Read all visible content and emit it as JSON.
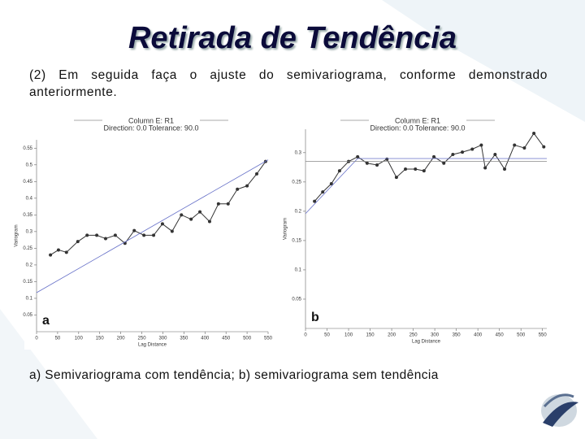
{
  "title": "Retirada de Tendência",
  "paragraph": "(2) Em seguida faça o ajuste do semivariograma, conforme demonstrado anteriormente.",
  "caption": "a) Semivariograma com tendência; b) semivariograma sem tendência",
  "chart_data": [
    {
      "type": "line",
      "title": "Column E:  R1",
      "subtitle": "Direction: 0.0   Tolerance: 90.0",
      "x_label": "Lag Distance",
      "y_label": "Variogram",
      "annotation": "a",
      "xlim": [
        0,
        550
      ],
      "xticks": [
        0,
        50,
        100,
        150,
        200,
        250,
        300,
        350,
        400,
        450,
        500,
        550
      ],
      "ylim": [
        0,
        0.575
      ],
      "yticks": [
        0.05,
        0.1,
        0.15,
        0.2,
        0.25,
        0.3,
        0.35,
        0.4,
        0.45,
        0.5,
        0.55
      ],
      "series": [
        {
          "color": "#333333",
          "marker": true,
          "x": [
            33,
            52,
            71,
            98,
            120,
            143,
            164,
            187,
            210,
            232,
            255,
            278,
            299,
            322,
            344,
            367,
            388,
            411,
            432,
            455,
            477,
            500,
            523,
            544
          ],
          "values": [
            0.23,
            0.245,
            0.238,
            0.27,
            0.289,
            0.289,
            0.279,
            0.289,
            0.265,
            0.303,
            0.289,
            0.289,
            0.323,
            0.301,
            0.35,
            0.337,
            0.359,
            0.33,
            0.383,
            0.383,
            0.427,
            0.437,
            0.473,
            0.51
          ]
        },
        {
          "color": "#6670c8",
          "marker": false,
          "x": [
            0,
            550
          ],
          "values": [
            0.117,
            0.515
          ]
        }
      ]
    },
    {
      "type": "line",
      "title": "Column E:  R1",
      "subtitle": "Direction: 0.0   Tolerance: 90.0",
      "x_label": "Lag Distance",
      "y_label": "Variogram",
      "annotation": "b",
      "xlim": [
        0,
        560
      ],
      "xticks": [
        0,
        50,
        100,
        150,
        200,
        250,
        300,
        350,
        400,
        450,
        500,
        550
      ],
      "ylim": [
        0,
        0.34
      ],
      "yticks": [
        0.05,
        0.1,
        0.15,
        0.2,
        0.25,
        0.3
      ],
      "series": [
        {
          "color": "#333333",
          "marker": true,
          "x": [
            21,
            40,
            60,
            79,
            100,
            121,
            143,
            166,
            189,
            211,
            232,
            255,
            275,
            298,
            321,
            342,
            364,
            387,
            408,
            417,
            440,
            462,
            485,
            508,
            530,
            553
          ],
          "values": [
            0.217,
            0.233,
            0.247,
            0.269,
            0.285,
            0.293,
            0.282,
            0.279,
            0.289,
            0.258,
            0.272,
            0.272,
            0.269,
            0.293,
            0.282,
            0.297,
            0.301,
            0.306,
            0.313,
            0.274,
            0.297,
            0.272,
            0.313,
            0.308,
            0.333,
            0.31
          ]
        },
        {
          "color": "#6670c8",
          "marker": false,
          "x": [
            0,
            121,
            560
          ],
          "values": [
            0.196,
            0.29,
            0.29
          ]
        },
        {
          "color": "#888888",
          "marker": false,
          "x": [
            0,
            560
          ],
          "values": [
            0.285,
            0.285
          ]
        }
      ]
    }
  ]
}
